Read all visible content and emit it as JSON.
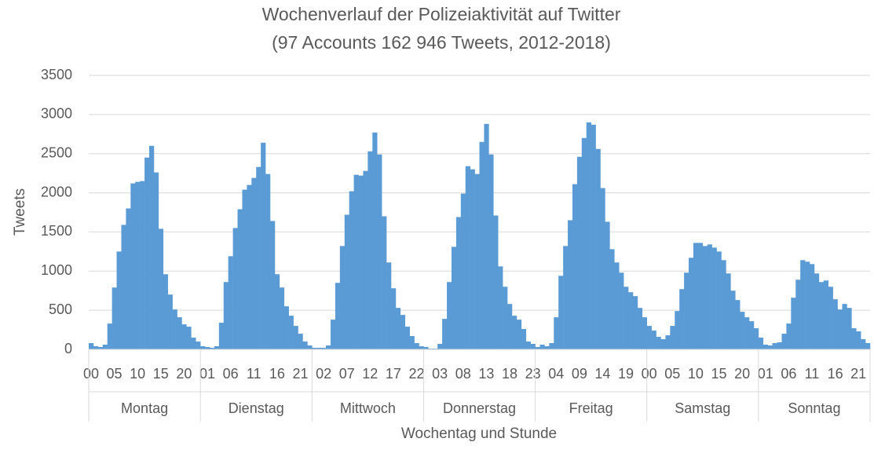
{
  "chart_data": {
    "type": "bar",
    "title": "Wochenverlauf der Polizeiaktivität auf Twitter",
    "subtitle": "(97 Accounts 162 946 Tweets, 2012-2018)",
    "x_label": "Wochentag und Stunde",
    "y_label": "Tweets",
    "color": "#5b9bd5",
    "grid": true,
    "ylim": [
      0,
      3500
    ],
    "yticks": [
      0,
      500,
      1000,
      1500,
      2000,
      2500,
      3000,
      3500
    ],
    "groups": [
      "Montag",
      "Dienstag",
      "Mittwoch",
      "Donnerstag",
      "Freitag",
      "Samstag",
      "Sonntag"
    ],
    "categories": [
      "00",
      null,
      null,
      null,
      null,
      "05",
      null,
      null,
      null,
      null,
      "10",
      null,
      null,
      null,
      null,
      "15",
      null,
      null,
      null,
      null,
      "20",
      null,
      null,
      null,
      null,
      "01",
      null,
      null,
      null,
      null,
      "06",
      null,
      null,
      null,
      null,
      "11",
      null,
      null,
      null,
      null,
      "16",
      null,
      null,
      null,
      null,
      "21",
      null,
      null,
      null,
      null,
      "02",
      null,
      null,
      null,
      null,
      "07",
      null,
      null,
      null,
      null,
      "12",
      null,
      null,
      null,
      null,
      "17",
      null,
      null,
      null,
      null,
      "22",
      null,
      null,
      null,
      null,
      "03",
      null,
      null,
      null,
      null,
      "08",
      null,
      null,
      null,
      null,
      "13",
      null,
      null,
      null,
      null,
      "18",
      null,
      null,
      null,
      null,
      "23",
      null,
      null,
      null,
      null,
      "04",
      null,
      null,
      null,
      null,
      "09",
      null,
      null,
      null,
      null,
      "14",
      null,
      null,
      null,
      null,
      "19",
      null,
      null,
      null,
      null,
      "00",
      null,
      null,
      null,
      null,
      "05",
      null,
      null,
      null,
      null,
      "10",
      null,
      null,
      null,
      null,
      "15",
      null,
      null,
      null,
      null,
      "20",
      null,
      null,
      null,
      null,
      "01",
      null,
      null,
      null,
      null,
      "06",
      null,
      null,
      null,
      null,
      "11",
      null,
      null,
      null,
      null,
      "16",
      null,
      null,
      null,
      null,
      "21",
      null,
      null
    ],
    "values": [
      80,
      40,
      30,
      60,
      330,
      790,
      1250,
      1590,
      1800,
      2120,
      2140,
      2150,
      2450,
      2600,
      2260,
      1540,
      960,
      700,
      510,
      410,
      320,
      290,
      150,
      100,
      40,
      30,
      20,
      40,
      340,
      860,
      1190,
      1550,
      1790,
      2040,
      2100,
      2190,
      2330,
      2640,
      2240,
      1640,
      960,
      790,
      550,
      430,
      300,
      200,
      100,
      50,
      20,
      20,
      20,
      50,
      380,
      850,
      1320,
      1720,
      2020,
      2230,
      2220,
      2280,
      2530,
      2770,
      2490,
      1700,
      1110,
      780,
      530,
      440,
      290,
      170,
      80,
      40,
      30,
      10,
      10,
      70,
      390,
      860,
      1310,
      1690,
      1990,
      2340,
      2300,
      2240,
      2650,
      2880,
      2490,
      1710,
      1060,
      800,
      580,
      430,
      380,
      260,
      100,
      70,
      30,
      60,
      40,
      80,
      410,
      940,
      1320,
      1650,
      2110,
      2460,
      2700,
      2900,
      2870,
      2560,
      2060,
      1630,
      1280,
      1110,
      980,
      800,
      730,
      680,
      530,
      410,
      300,
      240,
      160,
      130,
      180,
      300,
      490,
      770,
      980,
      1170,
      1360,
      1360,
      1320,
      1340,
      1300,
      1250,
      1140,
      970,
      750,
      630,
      480,
      410,
      360,
      270,
      150,
      60,
      50,
      80,
      90,
      200,
      330,
      660,
      890,
      1140,
      1120,
      1090,
      970,
      860,
      880,
      800,
      640,
      510,
      580,
      530,
      270,
      230,
      130,
      80
    ]
  }
}
